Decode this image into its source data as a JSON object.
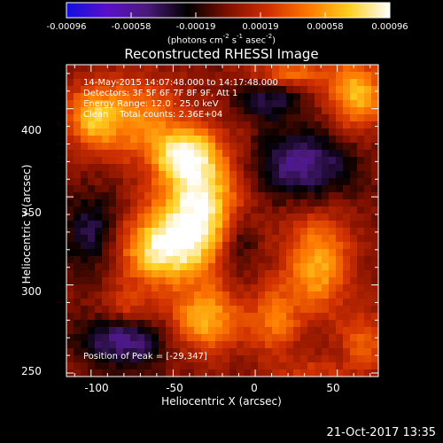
{
  "colorbar": {
    "tick_labels": [
      "-0.00096",
      "-0.00058",
      "-0.00019",
      "0.00019",
      "0.00058",
      "0.00096"
    ],
    "min": -0.00096,
    "max": 0.00096,
    "colors": [
      "#1010e0",
      "#5a10c8",
      "#4a1a7a",
      "#000000",
      "#801000",
      "#d03000",
      "#ff7800",
      "#ffd020",
      "#ffffff"
    ]
  },
  "chart_data": {
    "type": "heatmap",
    "title": "Reconstructed RHESSI Image",
    "xlabel": "Heliocentric X (arcsec)",
    "ylabel": "Heliocentric Y (arcsec)",
    "colorbar_label": "(photons cm^-2 s^-1 asec^-2)",
    "xlim": [
      -115,
      75
    ],
    "ylim": [
      248,
      425
    ],
    "xticks": [
      -100,
      -50,
      0,
      50
    ],
    "yticks": [
      250,
      300,
      350,
      400
    ],
    "peak_position": [
      -29,
      347
    ],
    "blobs": [
      {
        "x": -34,
        "y": 347,
        "sx": 18,
        "sy": 24,
        "a": 0.95
      },
      {
        "x": -58,
        "y": 320,
        "sx": 18,
        "sy": 14,
        "a": 0.8
      },
      {
        "x": -44,
        "y": 375,
        "sx": 13,
        "sy": 10,
        "a": 0.6
      },
      {
        "x": -76,
        "y": 395,
        "sx": 20,
        "sy": 16,
        "a": 0.55
      },
      {
        "x": -100,
        "y": 395,
        "sx": 10,
        "sy": 12,
        "a": 0.5
      },
      {
        "x": -30,
        "y": 280,
        "sx": 16,
        "sy": 13,
        "a": 0.65
      },
      {
        "x": -78,
        "y": 288,
        "sx": 10,
        "sy": 8,
        "a": 0.3
      },
      {
        "x": 38,
        "y": 312,
        "sx": 14,
        "sy": 20,
        "a": 0.65
      },
      {
        "x": 62,
        "y": 408,
        "sx": 12,
        "sy": 14,
        "a": 0.7
      },
      {
        "x": 22,
        "y": 420,
        "sx": 18,
        "sy": 6,
        "a": 0.45
      },
      {
        "x": 12,
        "y": 280,
        "sx": 10,
        "sy": 14,
        "a": 0.45
      },
      {
        "x": 66,
        "y": 268,
        "sx": 10,
        "sy": 12,
        "a": 0.4
      },
      {
        "x": 35,
        "y": 250,
        "sx": 16,
        "sy": 6,
        "a": 0.25
      },
      {
        "x": -100,
        "y": 330,
        "sx": 12,
        "sy": 16,
        "a": -0.4
      },
      {
        "x": -80,
        "y": 268,
        "sx": 18,
        "sy": 10,
        "a": -0.55
      },
      {
        "x": 28,
        "y": 368,
        "sx": 22,
        "sy": 14,
        "a": -0.55
      },
      {
        "x": 8,
        "y": 405,
        "sx": 14,
        "sy": 8,
        "a": -0.4
      },
      {
        "x": -10,
        "y": 325,
        "sx": 8,
        "sy": 14,
        "a": -0.35
      }
    ]
  },
  "annotation": {
    "line1": "14-May-2015 14:07:48.000 to 14:17:48.000",
    "line2": "Detectors: 3F 5F 6F 7F 8F 9F, Att 1",
    "line3": "Energy Range: 12.0 - 25.0 keV",
    "line4": "Clean    Total counts: 2.36E+04",
    "peak": "Position of Peak = [-29,347]"
  },
  "axis_ticks": {
    "x": [
      "-100",
      "-50",
      "0",
      "50"
    ],
    "y": [
      "250",
      "300",
      "350",
      "400"
    ]
  },
  "date_stamp": "21-Oct-2017 13:35"
}
